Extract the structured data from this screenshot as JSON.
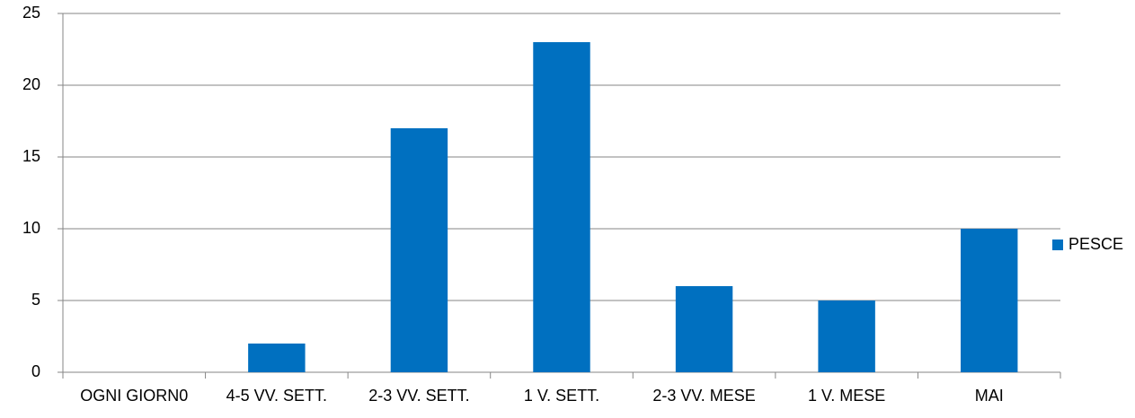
{
  "chart_data": {
    "type": "bar",
    "categories": [
      "OGNI GIORN0",
      "4-5 VV. SETT.",
      "2-3 VV. SETT.",
      "1 V. SETT.",
      "2-3 VV. MESE",
      "1 V. MESE",
      "MAI"
    ],
    "series": [
      {
        "name": "PESCE",
        "color": "#0070c0",
        "values": [
          0,
          2,
          17,
          23,
          6,
          5,
          10
        ]
      }
    ],
    "ylim": [
      0,
      25
    ],
    "yticks": [
      0,
      5,
      10,
      15,
      20,
      25
    ],
    "grid": true,
    "legend": "right"
  }
}
